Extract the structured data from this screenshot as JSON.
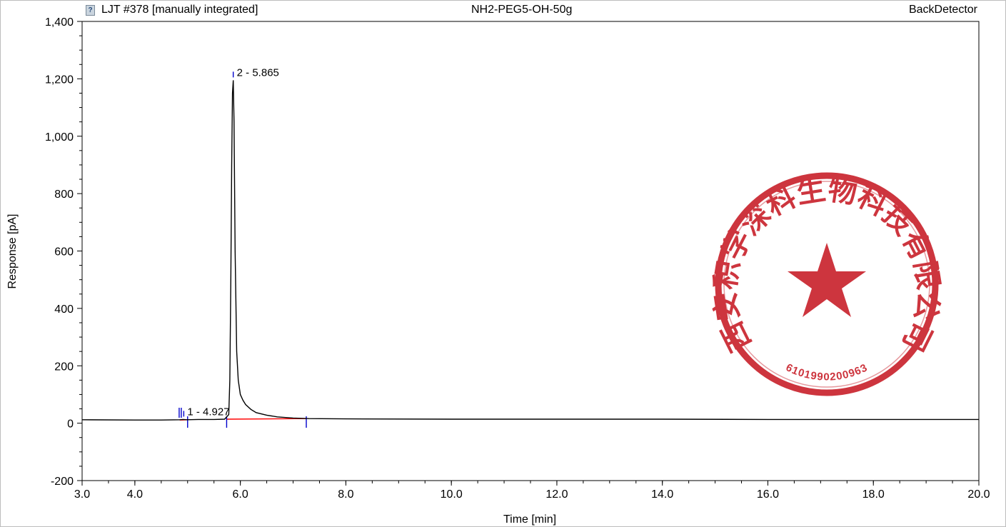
{
  "header": {
    "left_title": "LJT #378 [manually integrated]",
    "center_title": "NH2-PEG5-OH-50g",
    "right_title": "BackDetector",
    "doc_icon": "document-question-icon"
  },
  "colors": {
    "trace": "#000000",
    "baseline": "#ff0000",
    "markers": "#0000cc",
    "stamp": "#c8202a"
  },
  "stamp": {
    "company_text": "西安积学深科生物科技有限公司",
    "number": "6101990200963",
    "icon": "red-star-seal-icon"
  },
  "chart_data": {
    "type": "line",
    "xlabel": "Time [min]",
    "ylabel": "Response [pA]",
    "xlim": [
      3.0,
      20.0
    ],
    "ylim": [
      -200,
      1400
    ],
    "x_ticks": [
      3,
      4,
      6,
      8,
      10,
      12,
      14,
      16,
      18,
      20
    ],
    "x_tick_labels": [
      "3.0",
      "4.0",
      "6.0",
      "8.0",
      "10.0",
      "12.0",
      "14.0",
      "16.0",
      "18.0",
      "20.0"
    ],
    "y_ticks": [
      -200,
      0,
      200,
      400,
      600,
      800,
      1000,
      1200,
      1400
    ],
    "y_tick_labels": [
      "-200",
      "0",
      "200",
      "400",
      "600",
      "800",
      "1,000",
      "1,200",
      "1,400"
    ],
    "grid": false,
    "series": [
      {
        "x": [
          3.0,
          4.0,
          4.5,
          4.85,
          4.92,
          4.98,
          5.2,
          5.5,
          5.7,
          5.78,
          5.8,
          5.82,
          5.835,
          5.85,
          5.865,
          5.88,
          5.9,
          5.93,
          5.96,
          6.0,
          6.05,
          6.1,
          6.2,
          6.3,
          6.5,
          6.7,
          7.0,
          7.3,
          8.0,
          10.0,
          12.0,
          14.0,
          16.0,
          18.0,
          20.0
        ],
        "y": [
          12,
          11,
          11,
          12,
          13,
          12,
          13,
          13,
          14,
          30,
          150,
          500,
          900,
          1150,
          1195,
          1050,
          600,
          250,
          150,
          100,
          80,
          65,
          48,
          37,
          28,
          22,
          18,
          16,
          15,
          14,
          14,
          14,
          13,
          13,
          13
        ]
      }
    ],
    "peaks": [
      {
        "label": "1 - 4.927",
        "rt": 4.927,
        "apex": 13
      },
      {
        "label": "2 - 5.865",
        "rt": 5.865,
        "apex": 1195
      }
    ],
    "baseline_segments": [
      {
        "x": [
          4.85,
          5.0
        ],
        "y": [
          11,
          12
        ]
      },
      {
        "x": [
          5.74,
          7.25
        ],
        "y": [
          14,
          16
        ]
      }
    ],
    "integration_markers": [
      4.84,
      4.88,
      5.0,
      5.74,
      7.25
    ]
  }
}
